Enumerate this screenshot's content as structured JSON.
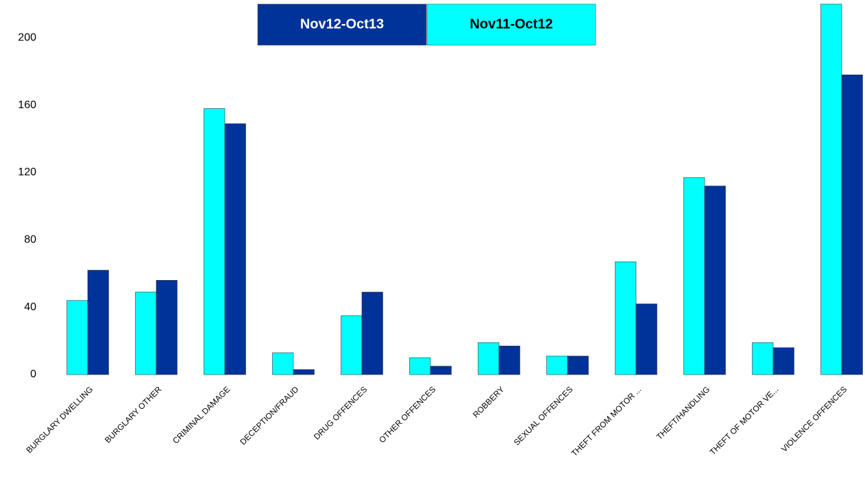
{
  "chart_data": {
    "type": "bar",
    "categories": [
      "BURGLARY DWELLING",
      "BURGLARY OTHER",
      "CRIMINAL DAMAGE",
      "DECEPTION/FRAUD",
      "DRUG OFFENCES",
      "OTHER OFFENCES",
      "ROBBERY",
      "SEXUAL OFFENCES",
      "THEFT FROM MOTOR ...",
      "THEFT/HANDLING",
      "THEFT OF MOTOR VE...",
      "VIOLENCE OFFENCES"
    ],
    "series": [
      {
        "name": "Nov11-Oct12",
        "color": "#00ffff",
        "values": [
          44,
          49,
          158,
          13,
          35,
          10,
          19,
          11,
          67,
          117,
          19,
          220
        ]
      },
      {
        "name": "Nov12-Oct13",
        "color": "#003399",
        "values": [
          62,
          56,
          149,
          3,
          49,
          5,
          17,
          11,
          42,
          112,
          16,
          178
        ]
      }
    ],
    "ylim": [
      0,
      220
    ],
    "yticks": [
      0,
      40,
      80,
      120,
      160,
      200
    ],
    "grid": false,
    "legend": "top"
  }
}
